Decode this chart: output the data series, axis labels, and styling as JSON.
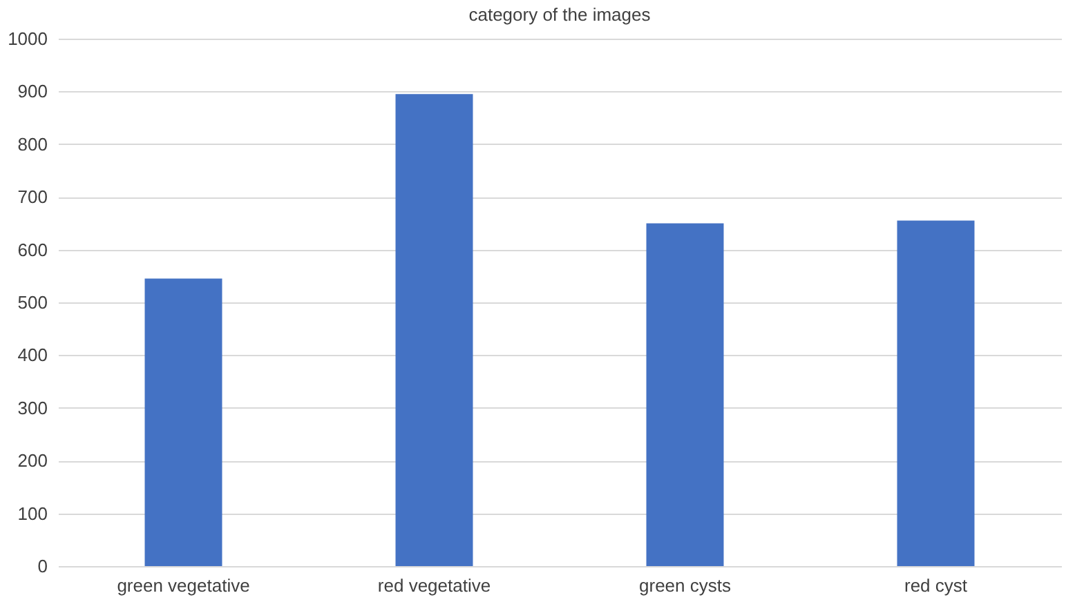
{
  "chart_data": {
    "type": "bar",
    "title": "category of the images",
    "categories": [
      "green vegetative",
      "red vegetative",
      "green cysts",
      "red cyst"
    ],
    "values": [
      545,
      895,
      650,
      655
    ],
    "color": "#4472c4",
    "ylim": [
      0,
      1000
    ],
    "yticks": [
      0,
      100,
      200,
      300,
      400,
      500,
      600,
      700,
      800,
      900,
      1000
    ],
    "grid": "y"
  }
}
